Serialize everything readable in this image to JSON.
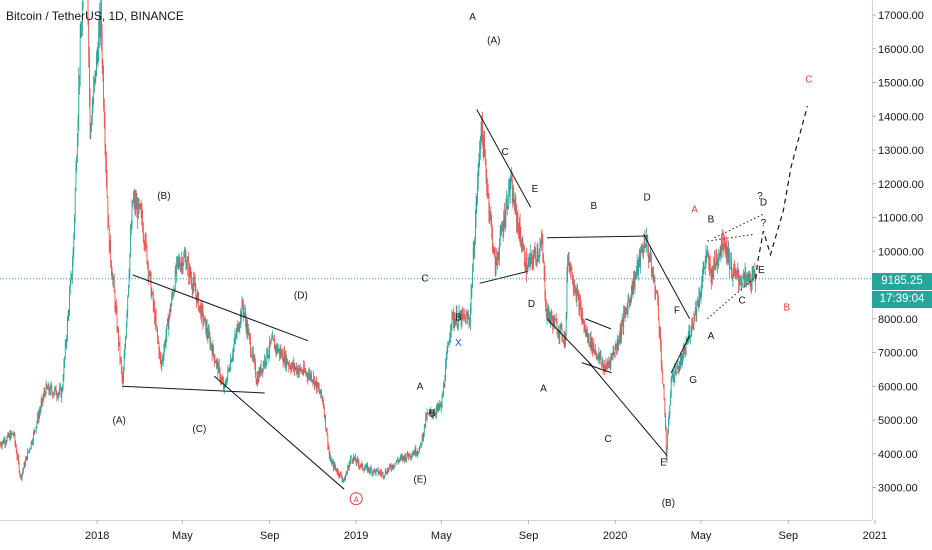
{
  "header": {
    "title": "Bitcoin / TetherUS, 1D, BINANCE"
  },
  "price_tag": {
    "price": "9185.25",
    "countdown": "17:39:04"
  },
  "colors": {
    "up": "#26a69a",
    "down": "#ef5350",
    "current_line": "#26a69a",
    "axis_text": "#131722",
    "label_red": "#e53935",
    "label_blue": "#1e4bd2"
  },
  "chart_data": {
    "type": "candlestick",
    "symbol": "Bitcoin / TetherUS",
    "interval": "1D",
    "exchange": "BINANCE",
    "current_price": 9185.25,
    "x_range": [
      "2017-08-17",
      "2020-12-28"
    ],
    "ylim": [
      2500,
      17500
    ],
    "grid": false,
    "y_ticks": [
      "17000.00",
      "16000.00",
      "15000.00",
      "14000.00",
      "13000.00",
      "12000.00",
      "11000.00",
      "10000.00",
      "9000.00",
      "8000.00",
      "7000.00",
      "6000.00",
      "5000.00",
      "4000.00",
      "3000.00"
    ],
    "x_ticks": [
      {
        "label": "2018",
        "date": "2018-01-01"
      },
      {
        "label": "May",
        "date": "2018-05-01"
      },
      {
        "label": "Sep",
        "date": "2018-09-01"
      },
      {
        "label": "2019",
        "date": "2019-01-01"
      },
      {
        "label": "May",
        "date": "2019-05-01"
      },
      {
        "label": "Sep",
        "date": "2019-09-01"
      },
      {
        "label": "2020",
        "date": "2020-01-01"
      },
      {
        "label": "May",
        "date": "2020-05-01"
      },
      {
        "label": "Sep",
        "date": "2020-09-01"
      },
      {
        "label": "2021",
        "date": "2021-01-01"
      }
    ],
    "price_path": [
      [
        "2017-08-17",
        4300
      ],
      [
        "2017-09-05",
        4600
      ],
      [
        "2017-09-15",
        3300
      ],
      [
        "2017-10-01",
        4400
      ],
      [
        "2017-10-20",
        5900
      ],
      [
        "2017-11-12",
        5800
      ],
      [
        "2017-11-28",
        9900
      ],
      [
        "2017-12-07",
        15500
      ],
      [
        "2017-12-17",
        19500
      ],
      [
        "2017-12-22",
        13500
      ],
      [
        "2018-01-06",
        17000
      ],
      [
        "2018-01-17",
        10500
      ],
      [
        "2018-02-06",
        6000
      ],
      [
        "2018-02-20",
        11500
      ],
      [
        "2018-03-05",
        11000
      ],
      [
        "2018-04-01",
        6600
      ],
      [
        "2018-04-24",
        9600
      ],
      [
        "2018-05-05",
        9800
      ],
      [
        "2018-06-05",
        7600
      ],
      [
        "2018-06-29",
        5900
      ],
      [
        "2018-07-25",
        8400
      ],
      [
        "2018-08-14",
        6200
      ],
      [
        "2018-09-04",
        7300
      ],
      [
        "2018-10-01",
        6600
      ],
      [
        "2018-10-31",
        6300
      ],
      [
        "2018-11-15",
        5600
      ],
      [
        "2018-11-25",
        3800
      ],
      [
        "2018-12-15",
        3200
      ],
      [
        "2018-12-25",
        3900
      ],
      [
        "2019-01-10",
        3600
      ],
      [
        "2019-02-08",
        3400
      ],
      [
        "2019-03-01",
        3800
      ],
      [
        "2019-04-01",
        4150
      ],
      [
        "2019-04-10",
        5100
      ],
      [
        "2019-05-01",
        5400
      ],
      [
        "2019-05-15",
        8000
      ],
      [
        "2019-06-10",
        8000
      ],
      [
        "2019-06-26",
        13800
      ],
      [
        "2019-07-16",
        9500
      ],
      [
        "2019-08-06",
        12000
      ],
      [
        "2019-08-29",
        9500
      ],
      [
        "2019-09-20",
        10200
      ],
      [
        "2019-09-26",
        8200
      ],
      [
        "2019-10-23",
        7400
      ],
      [
        "2019-10-26",
        9900
      ],
      [
        "2019-11-20",
        7600
      ],
      [
        "2019-12-18",
        6500
      ],
      [
        "2020-01-03",
        7200
      ],
      [
        "2020-02-13",
        10400
      ],
      [
        "2020-03-01",
        8500
      ],
      [
        "2020-03-12",
        4800
      ],
      [
        "2020-03-13",
        3850
      ],
      [
        "2020-03-20",
        6200
      ],
      [
        "2020-04-05",
        6800
      ],
      [
        "2020-04-30",
        8800
      ],
      [
        "2020-05-08",
        9900
      ],
      [
        "2020-05-15",
        9300
      ],
      [
        "2020-06-02",
        10400
      ],
      [
        "2020-06-15",
        9300
      ],
      [
        "2020-06-30",
        9150
      ],
      [
        "2020-07-17",
        9185
      ]
    ],
    "projection": [
      [
        "2020-07-17",
        9185
      ],
      [
        "2020-07-20",
        9700
      ],
      [
        "2020-07-28",
        10600
      ],
      [
        "2020-08-07",
        9900
      ],
      [
        "2020-08-25",
        11200
      ],
      [
        "2020-09-05",
        12500
      ],
      [
        "2020-09-28",
        14300
      ]
    ],
    "trendlines": [
      {
        "from": [
          "2018-02-06",
          6000
        ],
        "to": [
          "2018-08-25",
          5800
        ]
      },
      {
        "from": [
          "2018-02-20",
          9300
        ],
        "to": [
          "2018-10-25",
          7350
        ]
      },
      {
        "from": [
          "2018-06-15",
          6300
        ],
        "to": [
          "2018-12-15",
          2950
        ]
      },
      {
        "from": [
          "2019-06-20",
          14200
        ],
        "to": [
          "2019-09-04",
          11300
        ]
      },
      {
        "from": [
          "2019-06-24",
          9050
        ],
        "to": [
          "2019-08-30",
          9400
        ]
      },
      {
        "from": [
          "2019-09-27",
          10400
        ],
        "to": [
          "2020-02-15",
          10450
        ]
      },
      {
        "from": [
          "2019-09-27",
          8000
        ],
        "to": [
          "2019-11-30",
          6600
        ]
      },
      {
        "from": [
          "2019-11-15",
          6700
        ],
        "to": [
          "2019-12-27",
          6400
        ]
      },
      {
        "from": [
          "2019-11-20",
          8000
        ],
        "to": [
          "2019-12-26",
          7700
        ]
      },
      {
        "from": [
          "2019-11-25",
          6700
        ],
        "to": [
          "2020-03-14",
          3950
        ]
      },
      {
        "from": [
          "2020-02-10",
          10500
        ],
        "to": [
          "2020-04-15",
          8000
        ]
      },
      {
        "from": [
          "2020-03-20",
          6400
        ],
        "to": [
          "2020-04-15",
          7500
        ]
      }
    ],
    "triangle_lines": [
      {
        "from": [
          "2020-05-10",
          10300
        ],
        "to": [
          "2020-07-15",
          10500
        ],
        "style": "dotted"
      },
      {
        "from": [
          "2020-05-10",
          8000
        ],
        "to": [
          "2020-07-20",
          9300
        ],
        "style": "dotted"
      },
      {
        "from": [
          "2020-05-20",
          10400
        ],
        "to": [
          "2020-07-28",
          11100
        ],
        "style": "dotted"
      }
    ],
    "wave_labels": [
      {
        "text": "(A)",
        "date": "2018-02-01",
        "price": 4900,
        "color": "black"
      },
      {
        "text": "(B)",
        "date": "2018-04-05",
        "price": 11550,
        "color": "black"
      },
      {
        "text": "(C)",
        "date": "2018-05-25",
        "price": 4650,
        "color": "black"
      },
      {
        "text": "(D)",
        "date": "2018-10-15",
        "price": 8600,
        "color": "black"
      },
      {
        "text": "A",
        "date": "2019-06-14",
        "price": 16850,
        "color": "black"
      },
      {
        "text": "(A)",
        "date": "2019-07-14",
        "price": 16150,
        "color": "black"
      },
      {
        "text": "C",
        "date": "2019-07-30",
        "price": 12850,
        "color": "black"
      },
      {
        "text": "E",
        "date": "2019-09-10",
        "price": 11750,
        "color": "black"
      },
      {
        "text": "C",
        "date": "2019-04-08",
        "price": 9100,
        "color": "black"
      },
      {
        "text": "B",
        "date": "2019-05-25",
        "price": 7950,
        "color": "black"
      },
      {
        "text": "X",
        "date": "2019-05-25",
        "price": 7200,
        "color": "blue"
      },
      {
        "text": "D",
        "date": "2019-09-05",
        "price": 8350,
        "color": "black"
      },
      {
        "text": "A",
        "date": "2019-04-01",
        "price": 5900,
        "color": "black"
      },
      {
        "text": "B",
        "date": "2019-04-18",
        "price": 5100,
        "color": "black"
      },
      {
        "text": "(E)",
        "date": "2019-04-01",
        "price": 3150,
        "color": "black"
      },
      {
        "text": "A",
        "date": "2019-09-22",
        "price": 5850,
        "color": "black"
      },
      {
        "text": "B",
        "date": "2019-12-02",
        "price": 11250,
        "color": "black"
      },
      {
        "text": "C",
        "date": "2019-12-22",
        "price": 4350,
        "color": "black"
      },
      {
        "text": "D",
        "date": "2020-02-15",
        "price": 11500,
        "color": "black"
      },
      {
        "text": "E",
        "date": "2020-03-09",
        "price": 3650,
        "color": "black"
      },
      {
        "text": "F",
        "date": "2020-03-28",
        "price": 8150,
        "color": "black"
      },
      {
        "text": "G",
        "date": "2020-04-20",
        "price": 6100,
        "color": "black"
      },
      {
        "text": "(B)",
        "date": "2020-03-16",
        "price": 2450,
        "color": "black"
      },
      {
        "text": "A",
        "date": "2020-04-22",
        "price": 11150,
        "color": "red"
      },
      {
        "text": "B",
        "date": "2020-05-15",
        "price": 10850,
        "color": "black"
      },
      {
        "text": "A",
        "date": "2020-05-15",
        "price": 7400,
        "color": "black"
      },
      {
        "text": "C",
        "date": "2020-06-28",
        "price": 8450,
        "color": "black"
      },
      {
        "text": "E",
        "date": "2020-07-25",
        "price": 9350,
        "color": "black"
      },
      {
        "text": "B",
        "date": "2020-08-30",
        "price": 8250,
        "color": "red"
      },
      {
        "text": "C",
        "date": "2020-09-30",
        "price": 15000,
        "color": "red"
      },
      {
        "text": "?",
        "date": "2020-07-23",
        "price": 11550,
        "color": "black"
      },
      {
        "text": "D",
        "date": "2020-07-28",
        "price": 11350,
        "color": "black"
      },
      {
        "text": "?",
        "date": "2020-07-28",
        "price": 10750,
        "color": "black"
      },
      {
        "text": "A",
        "date": "2019-01-01",
        "price": 2550,
        "color": "red",
        "circled": true
      }
    ]
  }
}
